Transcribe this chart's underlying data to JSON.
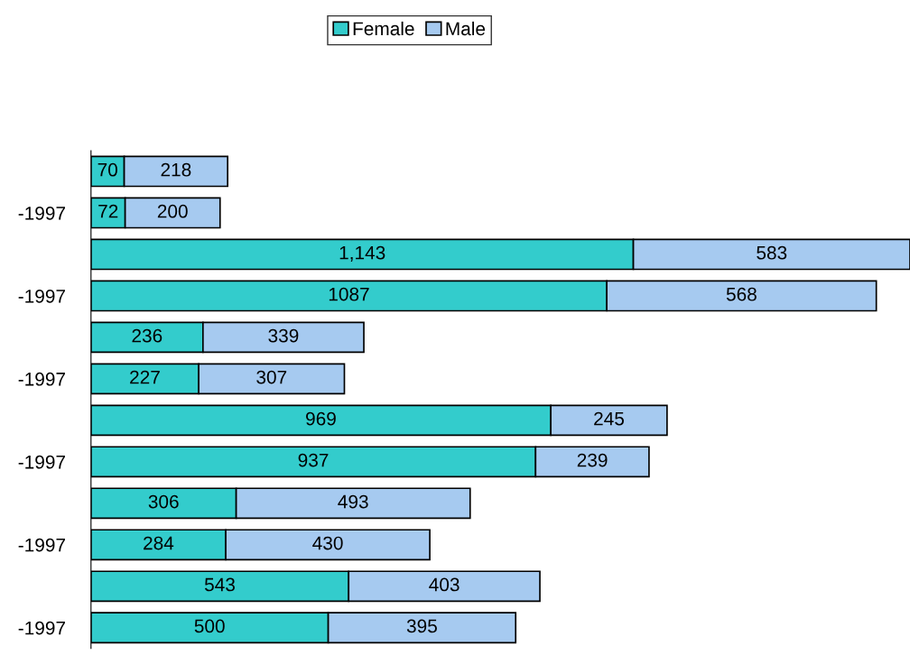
{
  "chart_data": {
    "type": "bar",
    "orientation": "horizontal",
    "stacked": true,
    "legend": "top",
    "grid": false,
    "categories": [
      null,
      "-1997",
      null,
      "-1997",
      null,
      "-1997",
      null,
      "-1997",
      null,
      "-1997",
      null,
      "-1997"
    ],
    "series": [
      {
        "name": "Female",
        "color": "#33cccc",
        "values": [
          70,
          72,
          1143,
          1087,
          236,
          227,
          969,
          937,
          306,
          284,
          543,
          500
        ],
        "value_labels": [
          "70",
          "72",
          "1,143",
          "1087",
          "236",
          "227",
          "969",
          "937",
          "306",
          "284",
          "543",
          "500"
        ]
      },
      {
        "name": "Male",
        "color": "#a6caf0",
        "values": [
          218,
          200,
          583,
          568,
          339,
          307,
          245,
          239,
          493,
          430,
          403,
          395
        ],
        "value_labels": [
          "218",
          "200",
          "583",
          "568",
          "339",
          "307",
          "245",
          "239",
          "493",
          "430",
          "403",
          "395"
        ]
      }
    ]
  }
}
